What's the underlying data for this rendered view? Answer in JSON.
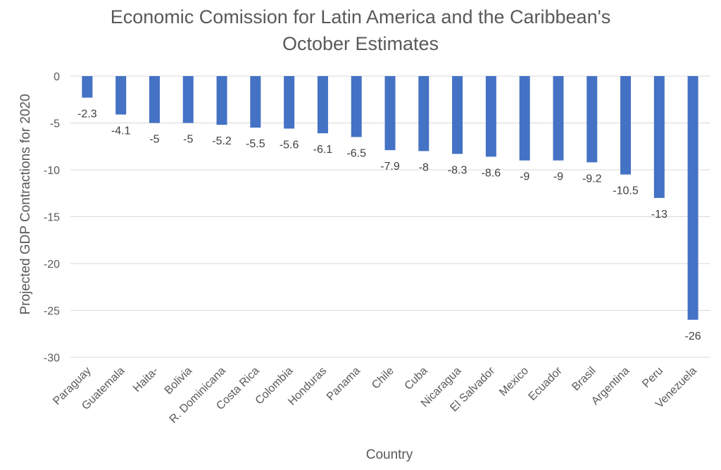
{
  "chart_data": {
    "type": "bar",
    "title_lines": [
      "Economic Comission for Latin America and the Caribbean's",
      "October Estimates"
    ],
    "xlabel": "Country",
    "ylabel": "Projected GDP Contractions for 2020",
    "ylim": [
      -30,
      0
    ],
    "yticks": [
      0,
      -5,
      -10,
      -15,
      -20,
      -25,
      -30
    ],
    "grid": true,
    "legend": "none",
    "bar_color": "#4472C4",
    "categories": [
      "Paraguay",
      "Guatemala",
      "Haita-",
      "Bolivia",
      "R. Dominicana",
      "Costa Rica",
      "Colombia",
      "Honduras",
      "Panama",
      "Chile",
      "Cuba",
      "Nicaragua",
      "El Salvador",
      "Mexico",
      "Ecuador",
      "Brasil",
      "Argentina",
      "Peru",
      "Venezuela"
    ],
    "values": [
      -2.3,
      -4.1,
      -5,
      -5,
      -5.2,
      -5.5,
      -5.6,
      -6.1,
      -6.5,
      -7.9,
      -8,
      -8.3,
      -8.6,
      -9,
      -9,
      -9.2,
      -10.5,
      -13,
      -26
    ],
    "data_labels": [
      "-2.3",
      "-4.1",
      "-5",
      "-5",
      "-5.2",
      "-5.5",
      "-5.6",
      "-6.1",
      "-6.5",
      "-7.9",
      "-8",
      "-8.3",
      "-8.6",
      "-9",
      "-9",
      "-9.2",
      "-10.5",
      "-13",
      "-26"
    ]
  }
}
